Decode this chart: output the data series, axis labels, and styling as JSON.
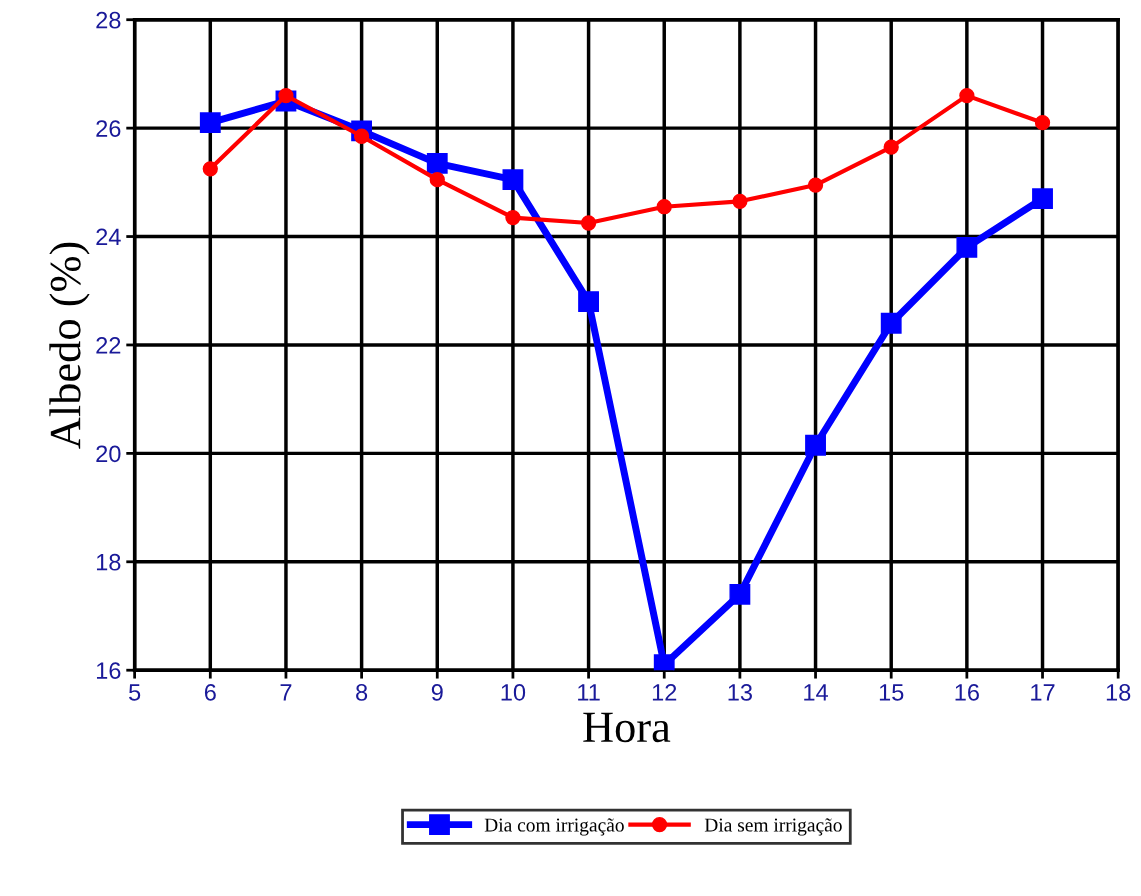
{
  "chart_data": {
    "type": "line",
    "xlabel": "Hora",
    "ylabel": "Albedo (%)",
    "x": [
      6,
      7,
      8,
      9,
      10,
      11,
      12,
      13,
      14,
      15,
      16,
      17
    ],
    "xlim": [
      5,
      18
    ],
    "xticks": [
      5,
      6,
      7,
      8,
      9,
      10,
      11,
      12,
      13,
      14,
      15,
      16,
      17,
      18
    ],
    "ylim": [
      16,
      28
    ],
    "yticks": [
      16,
      18,
      20,
      22,
      24,
      26,
      28
    ],
    "grid": true,
    "legend": "bottom",
    "line_style": "solid",
    "series": [
      {
        "name": "Dia com irrigação",
        "color": "#0000ff",
        "marker": "square",
        "values": [
          26.1,
          26.5,
          25.95,
          25.35,
          25.05,
          22.8,
          16.1,
          17.4,
          20.15,
          22.4,
          23.8,
          24.7
        ]
      },
      {
        "name": "Dia sem irrigação",
        "color": "#ff0000",
        "marker": "circle",
        "values": [
          25.25,
          26.6,
          25.85,
          25.05,
          24.35,
          24.25,
          24.55,
          24.65,
          24.95,
          25.65,
          26.6,
          26.1
        ]
      }
    ]
  }
}
